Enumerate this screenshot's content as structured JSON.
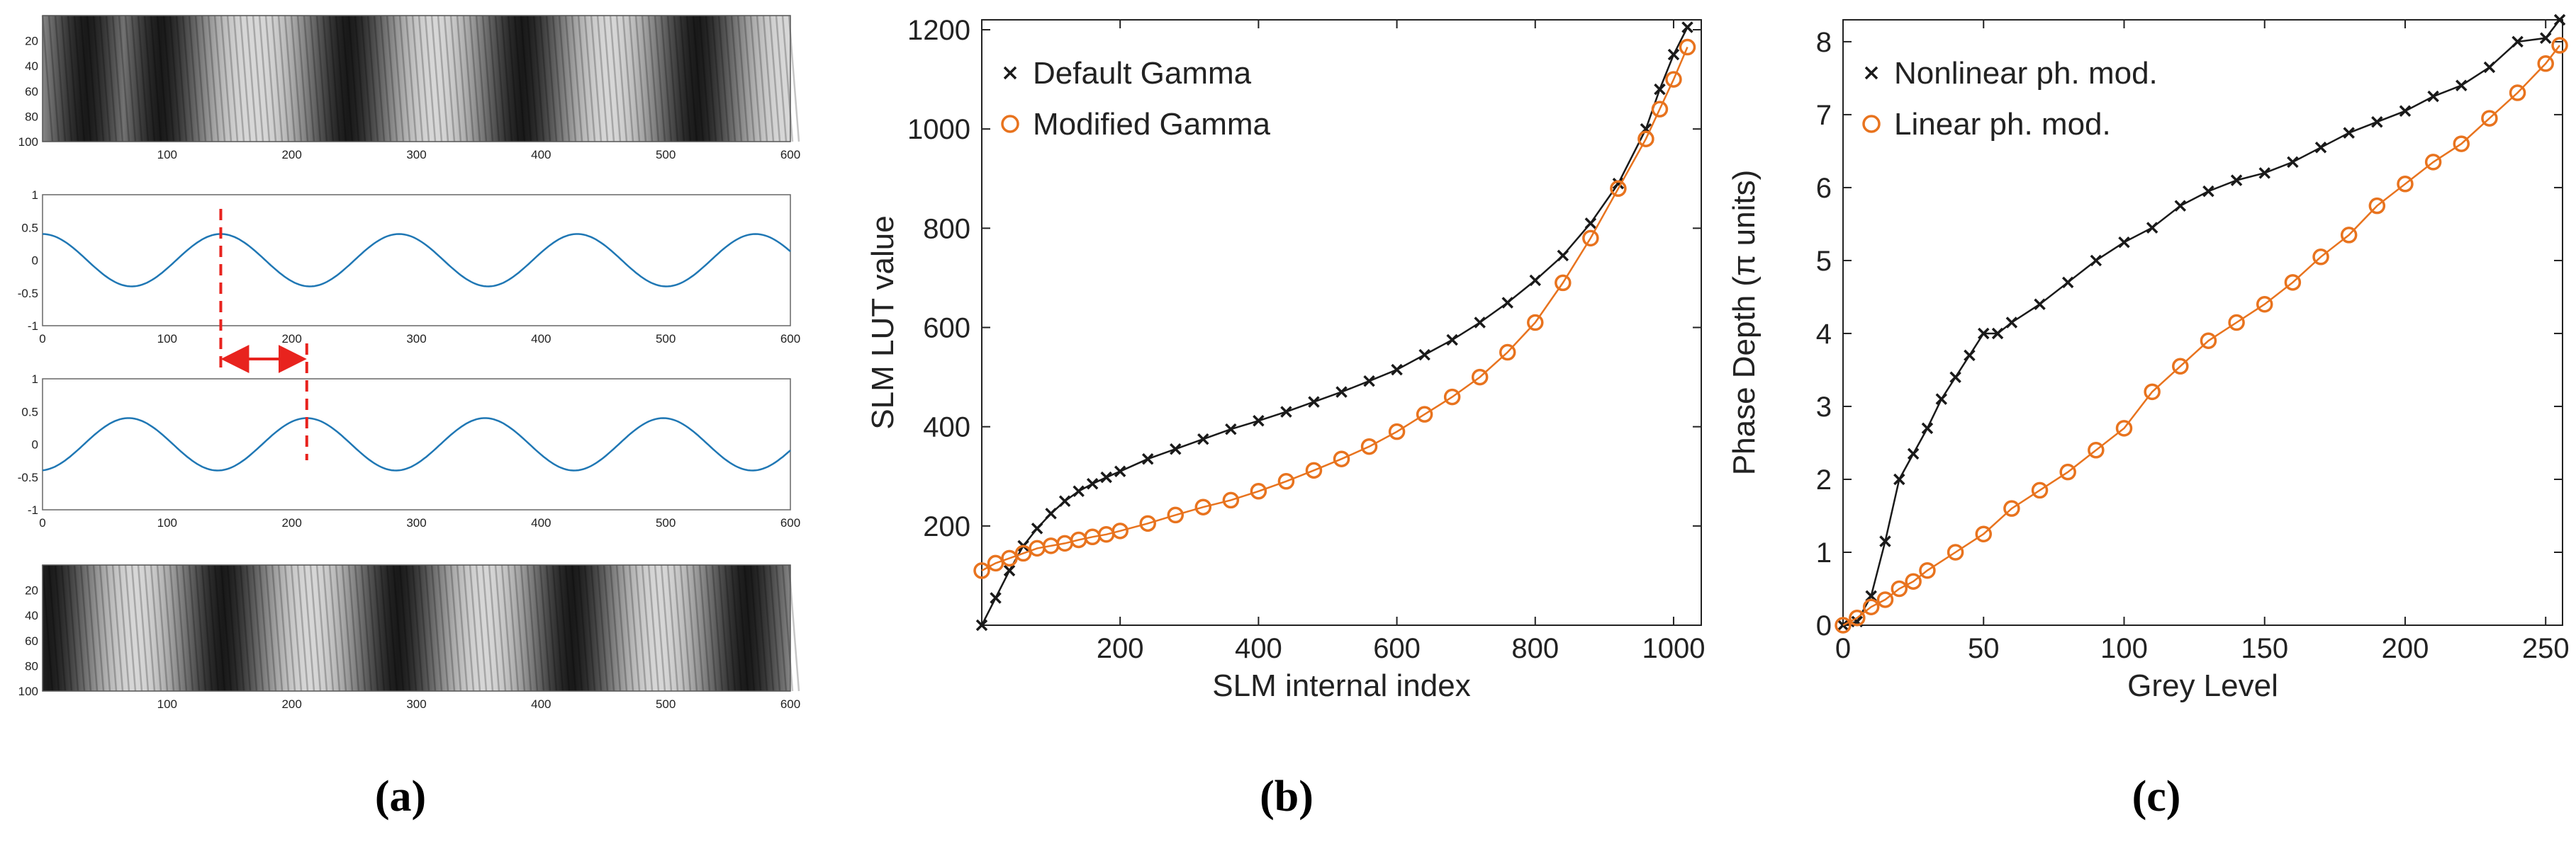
{
  "figure": {
    "labels": {
      "a": "(a)",
      "b": "(b)",
      "c": "(c)"
    },
    "colors": {
      "black": "#1a1a1a",
      "orange": "#e8731e",
      "sine": "#1f77b4",
      "red": "#e8231e"
    }
  },
  "chart_data": [
    {
      "id": "a-top-image",
      "type": "heatmap",
      "title": "",
      "x_ticks": [
        "100",
        "200",
        "300",
        "400",
        "500",
        "600"
      ],
      "y_ticks": [
        "20",
        "40",
        "60",
        "80",
        "100"
      ],
      "xlim": [
        0,
        600
      ],
      "ylim": [
        0,
        100
      ],
      "dark_bands_x": [
        35,
        95,
        245,
        385,
        525
      ]
    },
    {
      "id": "a-sine-1",
      "type": "line",
      "x_ticks": [
        "0",
        "100",
        "200",
        "300",
        "400",
        "500",
        "600"
      ],
      "y_ticks": [
        "1",
        "0.5",
        "0",
        "-0.5",
        "-1"
      ],
      "xlim": [
        0,
        600
      ],
      "ylim": [
        -1,
        1
      ],
      "amplitude": 0.4,
      "period": 143,
      "peak_x": 143,
      "marker_x": 143
    },
    {
      "id": "a-sine-2",
      "type": "line",
      "x_ticks": [
        "0",
        "100",
        "200",
        "300",
        "400",
        "500",
        "600"
      ],
      "y_ticks": [
        "1",
        "0.5",
        "0",
        "-0.5",
        "-1"
      ],
      "xlim": [
        0,
        600
      ],
      "ylim": [
        -1,
        1
      ],
      "amplitude": 0.4,
      "period": 143,
      "peak_x": 212,
      "marker_x": 212,
      "shift_arrow": [
        143,
        212
      ]
    },
    {
      "id": "a-bottom-image",
      "type": "heatmap",
      "x_ticks": [
        "100",
        "200",
        "300",
        "400",
        "500",
        "600"
      ],
      "y_ticks": [
        "20",
        "40",
        "60",
        "80",
        "100"
      ],
      "xlim": [
        0,
        600
      ],
      "ylim": [
        0,
        100
      ],
      "dark_bands_x": [
        5,
        145,
        285,
        425,
        565
      ]
    },
    {
      "id": "b",
      "type": "line",
      "xlabel": "SLM internal index",
      "ylabel": "SLM LUT value",
      "xlim": [
        0,
        1040
      ],
      "ylim": [
        0,
        1220
      ],
      "x_ticks": [
        200,
        400,
        600,
        800,
        1000
      ],
      "y_ticks": [
        200,
        400,
        600,
        800,
        1000,
        1200
      ],
      "legend": [
        "Default Gamma",
        "Modified Gamma"
      ],
      "legend_position": "top-left",
      "series": [
        {
          "name": "Default Gamma",
          "marker": "x",
          "color": "#1a1a1a",
          "x": [
            0,
            20,
            40,
            60,
            80,
            100,
            120,
            140,
            160,
            180,
            200,
            240,
            280,
            320,
            360,
            400,
            440,
            480,
            520,
            560,
            600,
            640,
            680,
            720,
            760,
            800,
            840,
            880,
            920,
            960,
            980,
            1000,
            1020
          ],
          "y": [
            0,
            55,
            110,
            160,
            195,
            225,
            250,
            270,
            285,
            298,
            310,
            335,
            355,
            375,
            395,
            412,
            430,
            450,
            470,
            492,
            515,
            545,
            575,
            610,
            650,
            695,
            745,
            810,
            890,
            1000,
            1080,
            1150,
            1205
          ]
        },
        {
          "name": "Modified Gamma",
          "marker": "o",
          "color": "#e8731e",
          "x": [
            0,
            20,
            40,
            60,
            80,
            100,
            120,
            140,
            160,
            180,
            200,
            240,
            280,
            320,
            360,
            400,
            440,
            480,
            520,
            560,
            600,
            640,
            680,
            720,
            760,
            800,
            840,
            880,
            920,
            960,
            980,
            1000,
            1020
          ],
          "y": [
            110,
            125,
            135,
            145,
            155,
            160,
            165,
            172,
            178,
            183,
            190,
            205,
            222,
            238,
            252,
            270,
            290,
            312,
            335,
            360,
            390,
            425,
            460,
            500,
            550,
            610,
            690,
            780,
            880,
            980,
            1040,
            1100,
            1165
          ]
        }
      ]
    },
    {
      "id": "c",
      "type": "line",
      "xlabel": "Grey Level",
      "ylabel": "Phase Depth (π units)",
      "xlim": [
        0,
        256
      ],
      "ylim": [
        0,
        8.3
      ],
      "x_ticks": [
        0,
        50,
        100,
        150,
        200,
        250
      ],
      "y_ticks": [
        0,
        1,
        2,
        3,
        4,
        5,
        6,
        7,
        8
      ],
      "legend": [
        "Nonlinear ph. mod.",
        "Linear ph. mod."
      ],
      "legend_position": "top-left",
      "series": [
        {
          "name": "Nonlinear ph. mod.",
          "marker": "x",
          "color": "#1a1a1a",
          "x": [
            0,
            5,
            10,
            15,
            20,
            25,
            30,
            35,
            40,
            45,
            50,
            55,
            60,
            70,
            80,
            90,
            100,
            110,
            120,
            130,
            140,
            150,
            160,
            170,
            180,
            190,
            200,
            210,
            220,
            230,
            240,
            250,
            255
          ],
          "y": [
            0,
            0.05,
            0.4,
            1.15,
            2.0,
            2.35,
            2.7,
            3.1,
            3.4,
            3.7,
            4.0,
            4.0,
            4.15,
            4.4,
            4.7,
            5.0,
            5.25,
            5.45,
            5.75,
            5.95,
            6.1,
            6.2,
            6.35,
            6.55,
            6.75,
            6.9,
            7.05,
            7.25,
            7.4,
            7.65,
            8.0,
            8.05,
            8.3
          ]
        },
        {
          "name": "Linear ph. mod.",
          "marker": "o",
          "color": "#e8731e",
          "x": [
            0,
            5,
            10,
            15,
            20,
            25,
            30,
            40,
            50,
            60,
            70,
            80,
            90,
            100,
            110,
            120,
            130,
            140,
            150,
            160,
            170,
            180,
            190,
            200,
            210,
            220,
            230,
            240,
            250,
            255
          ],
          "y": [
            0,
            0.1,
            0.25,
            0.35,
            0.5,
            0.6,
            0.75,
            1.0,
            1.25,
            1.6,
            1.85,
            2.1,
            2.4,
            2.7,
            3.2,
            3.55,
            3.9,
            4.15,
            4.4,
            4.7,
            5.05,
            5.35,
            5.75,
            6.05,
            6.35,
            6.6,
            6.95,
            7.3,
            7.7,
            7.95
          ]
        }
      ]
    }
  ]
}
